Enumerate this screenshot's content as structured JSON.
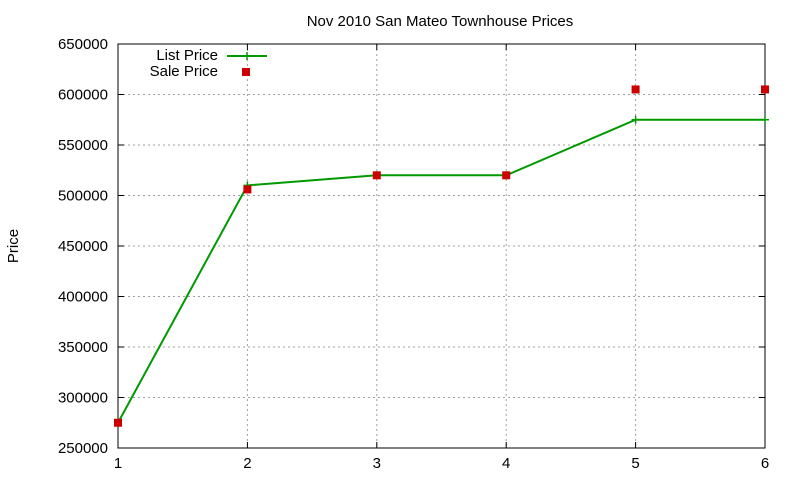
{
  "chart_data": {
    "type": "line",
    "title": "Nov 2010 San Mateo Townhouse Prices",
    "xlabel": "",
    "ylabel": "Price",
    "x": [
      1,
      2,
      3,
      4,
      5,
      6
    ],
    "xlim": [
      1,
      6
    ],
    "ylim": [
      250000,
      650000
    ],
    "x_ticks": [
      "1",
      "2",
      "3",
      "4",
      "5",
      "6"
    ],
    "y_ticks": [
      "250000",
      "300000",
      "350000",
      "400000",
      "450000",
      "500000",
      "550000",
      "600000",
      "650000"
    ],
    "grid": true,
    "legend_position": "top-left",
    "series": [
      {
        "name": "List Price",
        "style": "line+cross",
        "color": "#009900",
        "values": [
          275000,
          510000,
          520000,
          520000,
          575000,
          575000
        ]
      },
      {
        "name": "Sale Price",
        "style": "square-points",
        "color": "#cc0000",
        "values": [
          275000,
          506000,
          520000,
          520000,
          605000,
          605000
        ]
      }
    ]
  }
}
